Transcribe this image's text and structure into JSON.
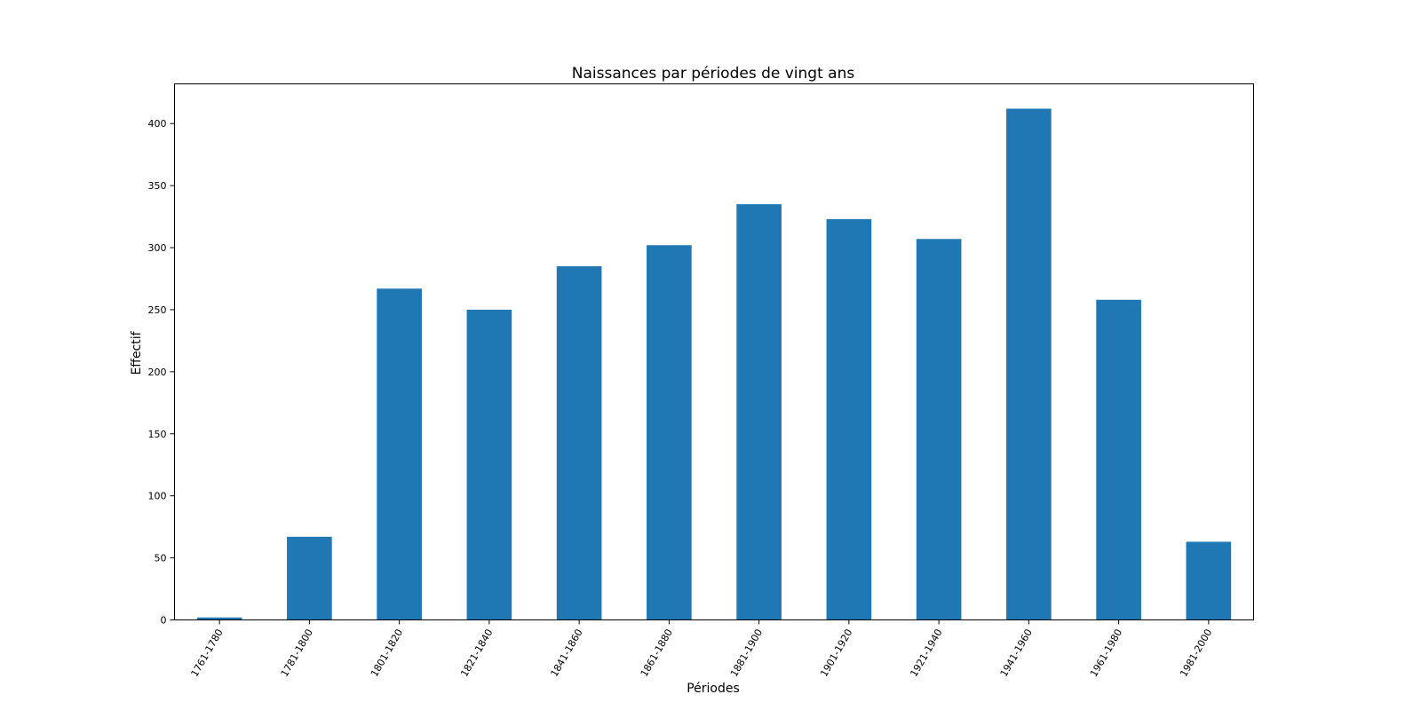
{
  "chart_data": {
    "type": "bar",
    "title": "Naissances par périodes de vingt ans",
    "xlabel": "Périodes",
    "ylabel": "Effectif",
    "categories": [
      "1761-1780",
      "1781-1800",
      "1801-1820",
      "1821-1840",
      "1841-1860",
      "1861-1880",
      "1881-1900",
      "1901-1920",
      "1921-1940",
      "1941-1960",
      "1961-1980",
      "1981-2000"
    ],
    "values": [
      2,
      67,
      267,
      250,
      285,
      302,
      335,
      323,
      307,
      412,
      258,
      63
    ],
    "yticks": [
      0,
      50,
      100,
      150,
      200,
      250,
      300,
      350,
      400
    ],
    "ylim": [
      0,
      432
    ],
    "bar_color": "#1f77b4",
    "grid": false,
    "legend": "none"
  }
}
